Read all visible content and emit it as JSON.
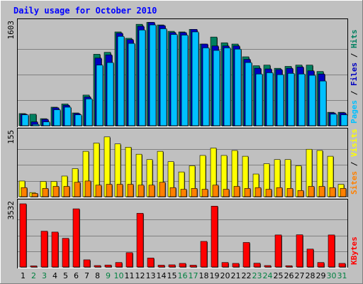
{
  "chart_data": {
    "type": "bar",
    "title": "Daily usage for October 2010",
    "categories": [
      "1",
      "2",
      "3",
      "4",
      "5",
      "6",
      "7",
      "8",
      "9",
      "10",
      "11",
      "12",
      "13",
      "14",
      "15",
      "16",
      "17",
      "18",
      "19",
      "20",
      "21",
      "22",
      "23",
      "24",
      "25",
      "26",
      "27",
      "28",
      "29",
      "30",
      "31"
    ],
    "weekend_days": [
      "2",
      "3",
      "9",
      "10",
      "16",
      "17",
      "23",
      "24",
      "30",
      "31"
    ],
    "colors": {
      "background": "#c0c0c0",
      "plot_background": "#c0c0c0",
      "title": "#0000ff",
      "weekday_label": "#000000",
      "weekend_label": "#008040",
      "pages": "#00c0ff",
      "files": "#0000c0",
      "hits": "#008060",
      "sites": "#ff8000",
      "visits": "#ffff00",
      "kbytes": "#ff0000"
    },
    "panels": [
      {
        "id": "hits-files-pages",
        "axis_max_label": "1603",
        "ylim": [
          0,
          1603
        ],
        "series": [
          {
            "name": "Hits",
            "color": "#008060",
            "values": [
              190,
              180,
              110,
              290,
              340,
              200,
              480,
              1120,
              1150,
              1470,
              1370,
              1590,
              1620,
              1580,
              1480,
              1470,
              1510,
              1280,
              1390,
              1300,
              1280,
              1080,
              940,
              950,
              900,
              930,
              950,
              950,
              850,
              210,
              210
            ]
          },
          {
            "name": "Files",
            "color": "#0000c0",
            "values": [
              180,
              60,
              100,
              280,
              320,
              190,
              450,
              1060,
              1110,
              1450,
              1350,
              1560,
              1620,
              1570,
              1460,
              1460,
              1510,
              1280,
              1250,
              1250,
              1250,
              1040,
              900,
              890,
              880,
              900,
              920,
              860,
              810,
              200,
              200
            ]
          },
          {
            "name": "Pages",
            "color": "#00c0ff",
            "values": [
              170,
              20,
              60,
              250,
              290,
              170,
              420,
              950,
              990,
              1400,
              1290,
              1500,
              1580,
              1520,
              1430,
              1420,
              1470,
              1220,
              1180,
              1220,
              1200,
              990,
              810,
              830,
              800,
              820,
              810,
              790,
              700,
              180,
              170
            ]
          }
        ],
        "legend": [
          "Pages",
          "Files",
          "Hits"
        ]
      },
      {
        "id": "visits-sites",
        "axis_max_label": "155",
        "ylim": [
          0,
          155
        ],
        "series": [
          {
            "name": "Visits",
            "color": "#ffff00",
            "values": [
              38,
              10,
              37,
              37,
              50,
              68,
              110,
              130,
              145,
              128,
              120,
              103,
              90,
              110,
              85,
              60,
              75,
              100,
              118,
              100,
              112,
              98,
              55,
              80,
              90,
              90,
              75,
              115,
              112,
              98,
              30
            ]
          },
          {
            "name": "Sites",
            "color": "#ff8000",
            "values": [
              22,
              8,
              20,
              25,
              25,
              35,
              38,
              28,
              30,
              30,
              30,
              28,
              28,
              35,
              22,
              18,
              20,
              18,
              28,
              18,
              25,
              20,
              22,
              18,
              22,
              20,
              15,
              25,
              25,
              22,
              20
            ]
          }
        ],
        "legend": [
          "Sites",
          "Visits"
        ]
      },
      {
        "id": "kbytes",
        "axis_max_label": "3532",
        "ylim": [
          0,
          3532
        ],
        "series": [
          {
            "name": "KBytes",
            "color": "#ff0000",
            "values": [
              3532,
              60,
              2000,
              1950,
              1600,
              3250,
              400,
              80,
              110,
              250,
              800,
              3000,
              500,
              100,
              120,
              200,
              100,
              1430,
              3400,
              250,
              200,
              1370,
              210,
              80,
              1790,
              70,
              1800,
              1000,
              250,
              1790,
              200
            ]
          }
        ],
        "legend": [
          "KBytes"
        ]
      }
    ]
  }
}
